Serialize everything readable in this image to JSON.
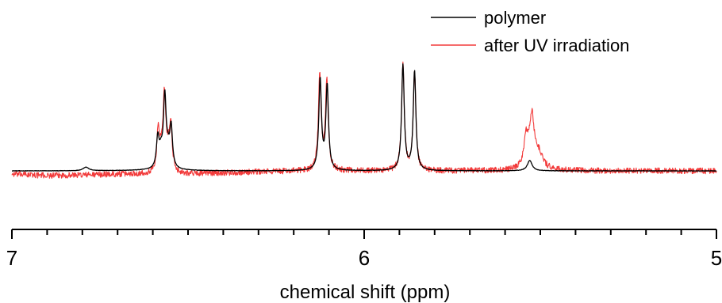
{
  "chart_data": {
    "type": "line",
    "title": "",
    "xlabel": "chemical shift (ppm)",
    "ylabel": "",
    "xlim": [
      7,
      5
    ],
    "x_reversed": true,
    "ylim": [
      -0.08,
      1.05
    ],
    "tick_labels": [
      "7",
      "6",
      "5"
    ],
    "major_ticks": [
      7,
      6,
      5
    ],
    "minor_tick_step": 0.1,
    "y_axis_shown": false,
    "grid": false,
    "legend": "top-right",
    "series": [
      {
        "name": "polymer",
        "color": "#000000",
        "noise": 0.002,
        "baseline": [
          [
            7.0,
            0.0
          ],
          [
            6.8,
            0.0
          ],
          [
            6.6,
            0.005
          ],
          [
            6.55,
            0.005
          ],
          [
            6.4,
            0.0
          ],
          [
            5.2,
            0.0
          ],
          [
            5.0,
            0.0
          ]
        ],
        "peaks": [
          {
            "x": 6.79,
            "height": 0.035,
            "width": 0.01
          },
          {
            "x": 6.586,
            "height": 0.28,
            "width": 0.0045
          },
          {
            "x": 6.566,
            "height": 0.66,
            "width": 0.0045
          },
          {
            "x": 6.548,
            "height": 0.38,
            "width": 0.0045
          },
          {
            "x": 6.577,
            "height": 0.14,
            "width": 0.006
          },
          {
            "x": 6.557,
            "height": 0.14,
            "width": 0.006
          },
          {
            "x": 6.125,
            "height": 0.86,
            "width": 0.0045
          },
          {
            "x": 6.105,
            "height": 0.8,
            "width": 0.0045
          },
          {
            "x": 5.89,
            "height": 1.0,
            "width": 0.0045
          },
          {
            "x": 5.857,
            "height": 0.94,
            "width": 0.0045
          },
          {
            "x": 5.53,
            "height": 0.1,
            "width": 0.008
          }
        ]
      },
      {
        "name": "after UV irradiation",
        "color": "#f23a3a",
        "noise": 0.028,
        "baseline": [
          [
            7.0,
            -0.03
          ],
          [
            6.9,
            -0.045
          ],
          [
            6.75,
            -0.035
          ],
          [
            6.65,
            -0.03
          ],
          [
            6.52,
            -0.03
          ],
          [
            6.3,
            -0.01
          ],
          [
            6.17,
            0.0
          ],
          [
            6.02,
            0.0
          ],
          [
            5.92,
            0.0
          ],
          [
            5.85,
            0.0
          ],
          [
            5.75,
            0.0
          ],
          [
            5.6,
            0.0
          ],
          [
            5.4,
            0.0
          ],
          [
            5.0,
            0.0
          ]
        ],
        "peaks": [
          {
            "x": 6.585,
            "height": 0.36,
            "width": 0.0045
          },
          {
            "x": 6.567,
            "height": 0.7,
            "width": 0.0045
          },
          {
            "x": 6.549,
            "height": 0.42,
            "width": 0.0045
          },
          {
            "x": 6.577,
            "height": 0.16,
            "width": 0.006
          },
          {
            "x": 6.557,
            "height": 0.16,
            "width": 0.006
          },
          {
            "x": 6.126,
            "height": 0.92,
            "width": 0.0045
          },
          {
            "x": 6.106,
            "height": 0.86,
            "width": 0.0045
          },
          {
            "x": 5.89,
            "height": 1.02,
            "width": 0.0045
          },
          {
            "x": 5.857,
            "height": 0.93,
            "width": 0.0045
          },
          {
            "x": 5.54,
            "height": 0.28,
            "width": 0.008
          },
          {
            "x": 5.524,
            "height": 0.46,
            "width": 0.008
          },
          {
            "x": 5.505,
            "height": 0.15,
            "width": 0.015
          }
        ]
      }
    ]
  }
}
